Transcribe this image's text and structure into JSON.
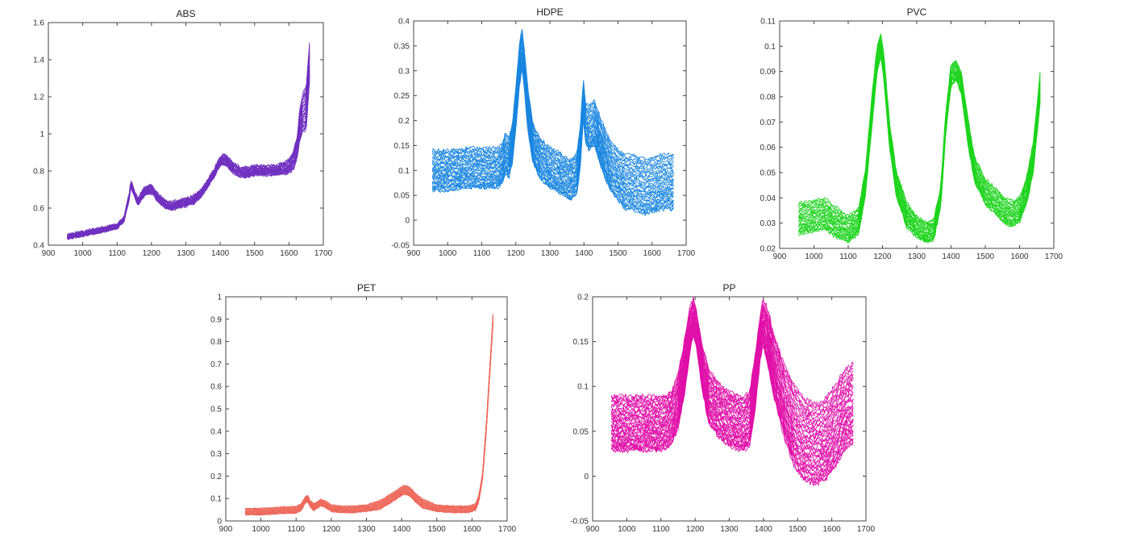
{
  "chart_data": [
    {
      "type": "line",
      "title": "ABS",
      "color": "#7030c0",
      "xlim": [
        900,
        1700
      ],
      "ylim": [
        0.4,
        1.6
      ],
      "xticks": [
        "900",
        "1000",
        "1100",
        "1200",
        "1300",
        "1400",
        "1500",
        "1600",
        "1700"
      ],
      "yticks": [
        "0.4",
        "0.6",
        "0.8",
        "1",
        "1.2",
        "1.4",
        "1.6"
      ],
      "x": [
        955,
        1000,
        1050,
        1100,
        1120,
        1135,
        1140,
        1150,
        1160,
        1170,
        1180,
        1195,
        1205,
        1220,
        1240,
        1260,
        1280,
        1300,
        1320,
        1340,
        1360,
        1380,
        1400,
        1410,
        1420,
        1440,
        1460,
        1480,
        1500,
        1520,
        1540,
        1560,
        1580,
        1600,
        1615,
        1625,
        1630,
        1640,
        1650,
        1660
      ],
      "series_mean": [
        0.445,
        0.46,
        0.48,
        0.5,
        0.54,
        0.66,
        0.73,
        0.68,
        0.63,
        0.66,
        0.69,
        0.7,
        0.69,
        0.65,
        0.62,
        0.61,
        0.62,
        0.63,
        0.64,
        0.67,
        0.72,
        0.78,
        0.85,
        0.86,
        0.85,
        0.81,
        0.79,
        0.79,
        0.8,
        0.8,
        0.8,
        0.8,
        0.81,
        0.82,
        0.86,
        0.93,
        1.02,
        1.1,
        1.12,
        1.38
      ],
      "spread": [
        0.01,
        0.01,
        0.01,
        0.01,
        0.01,
        0.015,
        0.015,
        0.015,
        0.015,
        0.02,
        0.02,
        0.02,
        0.02,
        0.02,
        0.02,
        0.02,
        0.02,
        0.02,
        0.02,
        0.02,
        0.02,
        0.02,
        0.025,
        0.025,
        0.025,
        0.025,
        0.025,
        0.025,
        0.025,
        0.025,
        0.025,
        0.025,
        0.03,
        0.035,
        0.05,
        0.06,
        0.08,
        0.1,
        0.12,
        0.1
      ],
      "n_series": 24,
      "jitter": 0.02
    },
    {
      "type": "line",
      "title": "HDPE",
      "color": "#1a86e0",
      "xlim": [
        900,
        1700
      ],
      "ylim": [
        -0.05,
        0.4
      ],
      "xticks": [
        "900",
        "1000",
        "1100",
        "1200",
        "1300",
        "1400",
        "1500",
        "1600",
        "1700"
      ],
      "yticks": [
        "-0.05",
        "0",
        "0.05",
        "0.1",
        "0.15",
        "0.2",
        "0.25",
        "0.3",
        "0.35",
        "0.4"
      ],
      "x": [
        955,
        1000,
        1050,
        1100,
        1130,
        1150,
        1160,
        1170,
        1180,
        1190,
        1200,
        1210,
        1218,
        1225,
        1235,
        1250,
        1270,
        1300,
        1330,
        1360,
        1380,
        1390,
        1398,
        1405,
        1415,
        1430,
        1440,
        1460,
        1480,
        1500,
        1520,
        1540,
        1560,
        1580,
        1600,
        1630,
        1665
      ],
      "series_mean": [
        0.095,
        0.095,
        0.1,
        0.1,
        0.1,
        0.1,
        0.11,
        0.13,
        0.12,
        0.15,
        0.22,
        0.3,
        0.34,
        0.3,
        0.22,
        0.15,
        0.12,
        0.1,
        0.09,
        0.075,
        0.09,
        0.15,
        0.24,
        0.19,
        0.18,
        0.19,
        0.17,
        0.13,
        0.1,
        0.085,
        0.07,
        0.07,
        0.065,
        0.06,
        0.065,
        0.07,
        0.07
      ],
      "spread": [
        0.04,
        0.04,
        0.04,
        0.04,
        0.04,
        0.04,
        0.04,
        0.04,
        0.04,
        0.04,
        0.04,
        0.04,
        0.04,
        0.04,
        0.04,
        0.04,
        0.04,
        0.04,
        0.04,
        0.04,
        0.04,
        0.04,
        0.04,
        0.04,
        0.045,
        0.045,
        0.045,
        0.05,
        0.05,
        0.05,
        0.055,
        0.055,
        0.055,
        0.055,
        0.055,
        0.055,
        0.055
      ],
      "n_series": 32,
      "jitter": 0.008
    },
    {
      "type": "line",
      "title": "PVC",
      "color": "#1ed41e",
      "xlim": [
        900,
        1700
      ],
      "ylim": [
        0.02,
        0.11
      ],
      "xticks": [
        "900",
        "1000",
        "1100",
        "1200",
        "1300",
        "1400",
        "1500",
        "1600",
        "1700"
      ],
      "yticks": [
        "0.02",
        "0.03",
        "0.04",
        "0.05",
        "0.06",
        "0.07",
        "0.08",
        "0.09",
        "0.1",
        "0.11"
      ],
      "x": [
        955,
        1000,
        1030,
        1060,
        1100,
        1130,
        1150,
        1170,
        1185,
        1195,
        1205,
        1220,
        1240,
        1270,
        1300,
        1330,
        1350,
        1370,
        1385,
        1400,
        1415,
        1430,
        1450,
        1470,
        1500,
        1530,
        1560,
        1580,
        1600,
        1620,
        1640,
        1660
      ],
      "series_mean": [
        0.031,
        0.032,
        0.033,
        0.03,
        0.027,
        0.03,
        0.045,
        0.075,
        0.095,
        0.1,
        0.09,
        0.065,
        0.045,
        0.033,
        0.028,
        0.026,
        0.027,
        0.04,
        0.07,
        0.088,
        0.09,
        0.085,
        0.065,
        0.05,
        0.042,
        0.038,
        0.034,
        0.033,
        0.035,
        0.042,
        0.055,
        0.083
      ],
      "spread": [
        0.006,
        0.006,
        0.006,
        0.006,
        0.005,
        0.005,
        0.005,
        0.006,
        0.005,
        0.005,
        0.005,
        0.005,
        0.005,
        0.005,
        0.004,
        0.004,
        0.004,
        0.004,
        0.004,
        0.004,
        0.004,
        0.004,
        0.005,
        0.005,
        0.005,
        0.005,
        0.005,
        0.005,
        0.005,
        0.005,
        0.006,
        0.006
      ],
      "n_series": 24,
      "jitter": 0.0015
    },
    {
      "type": "line",
      "title": "PET",
      "color": "#ee6a5c",
      "xlim": [
        900,
        1700
      ],
      "ylim": [
        0,
        1
      ],
      "xticks": [
        "900",
        "1000",
        "1100",
        "1200",
        "1300",
        "1400",
        "1500",
        "1600",
        "1700"
      ],
      "yticks": [
        "0",
        "0.1",
        "0.2",
        "0.3",
        "0.4",
        "0.5",
        "0.6",
        "0.7",
        "0.8",
        "0.9",
        "1"
      ],
      "x": [
        955,
        1000,
        1050,
        1100,
        1115,
        1125,
        1133,
        1140,
        1150,
        1160,
        1170,
        1180,
        1190,
        1200,
        1230,
        1260,
        1300,
        1340,
        1370,
        1390,
        1405,
        1415,
        1425,
        1440,
        1460,
        1500,
        1550,
        1590,
        1610,
        1620,
        1630,
        1640,
        1650,
        1660
      ],
      "series_mean": [
        0.04,
        0.04,
        0.045,
        0.048,
        0.06,
        0.09,
        0.1,
        0.075,
        0.06,
        0.07,
        0.08,
        0.075,
        0.065,
        0.055,
        0.05,
        0.05,
        0.055,
        0.07,
        0.1,
        0.12,
        0.135,
        0.135,
        0.125,
        0.1,
        0.075,
        0.055,
        0.05,
        0.05,
        0.06,
        0.1,
        0.2,
        0.4,
        0.65,
        0.9
      ],
      "spread": [
        0.015,
        0.015,
        0.015,
        0.015,
        0.015,
        0.015,
        0.015,
        0.015,
        0.015,
        0.015,
        0.015,
        0.015,
        0.015,
        0.015,
        0.015,
        0.015,
        0.015,
        0.02,
        0.02,
        0.02,
        0.02,
        0.02,
        0.02,
        0.02,
        0.02,
        0.015,
        0.015,
        0.015,
        0.015,
        0.015,
        0.015,
        0.02,
        0.02,
        0.02
      ],
      "n_series": 18,
      "jitter": 0.004
    },
    {
      "type": "line",
      "title": "PP",
      "color": "#e010a8",
      "xlim": [
        900,
        1700
      ],
      "ylim": [
        -0.05,
        0.2
      ],
      "xticks": [
        "900",
        "1000",
        "1100",
        "1200",
        "1300",
        "1400",
        "1500",
        "1600",
        "1700"
      ],
      "yticks": [
        "-0.05",
        "0",
        "0.05",
        "0.1",
        "0.15",
        "0.2"
      ],
      "x": [
        955,
        1000,
        1050,
        1100,
        1130,
        1150,
        1170,
        1185,
        1195,
        1205,
        1220,
        1240,
        1270,
        1300,
        1340,
        1360,
        1375,
        1390,
        1398,
        1410,
        1430,
        1460,
        1490,
        1520,
        1550,
        1580,
        1610,
        1640,
        1665
      ],
      "series_mean": [
        0.055,
        0.055,
        0.055,
        0.055,
        0.06,
        0.08,
        0.12,
        0.16,
        0.175,
        0.16,
        0.12,
        0.085,
        0.07,
        0.06,
        0.055,
        0.06,
        0.1,
        0.15,
        0.17,
        0.155,
        0.12,
        0.08,
        0.05,
        0.035,
        0.03,
        0.035,
        0.05,
        0.07,
        0.075
      ],
      "spread": [
        0.03,
        0.03,
        0.03,
        0.03,
        0.03,
        0.03,
        0.03,
        0.025,
        0.02,
        0.02,
        0.025,
        0.03,
        0.03,
        0.03,
        0.03,
        0.03,
        0.03,
        0.025,
        0.025,
        0.03,
        0.035,
        0.04,
        0.045,
        0.045,
        0.045,
        0.045,
        0.045,
        0.045,
        0.045
      ],
      "n_series": 36,
      "jitter": 0.006
    }
  ]
}
